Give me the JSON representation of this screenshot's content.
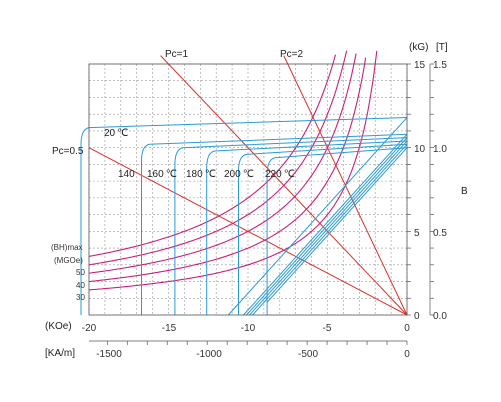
{
  "chart_data": {
    "type": "line",
    "title": "",
    "axes": {
      "h_unit_koe": "(KOe)",
      "h_ticks_koe": [
        "-20",
        "-15",
        "-10",
        "-5",
        "0"
      ],
      "h_unit_kam": "[KA/m]",
      "h_ticks_kam": [
        "-1500",
        "-1000",
        "-500",
        "0"
      ],
      "b_unit_kg": "(kG)",
      "b_unit_t": "[T]",
      "b_ticks_kg": [
        "15",
        "10",
        "5",
        "0"
      ],
      "b_ticks_t": [
        "1.5",
        "1.0",
        "0.5",
        "0.0"
      ],
      "b_label": "B",
      "xlim_koe": [
        -20,
        0
      ],
      "ylim_kg": [
        0,
        15
      ],
      "grid": true
    },
    "bhmax": {
      "header_1": "(BH)max",
      "header_2": "(MGOe)",
      "labels": [
        "50",
        "40",
        "30"
      ],
      "values": [
        50,
        40,
        30
      ],
      "color": "#cc1f7a"
    },
    "permeance": {
      "labels": [
        "Pc=1",
        "Pc=2",
        "Pc=0.5"
      ],
      "values": [
        1,
        2,
        0.5
      ],
      "color": "#d8322b"
    },
    "temperature_curves": {
      "color": "#2a9bd6",
      "series": [
        {
          "label": "20",
          "unit": "℃",
          "br_kg": 11.8,
          "hcj_koe": -20.5
        },
        {
          "label": "140",
          "unit": "",
          "br_kg": 10.8,
          "hcj_koe": -16.7
        },
        {
          "label": "160",
          "unit": "℃",
          "br_kg": 10.6,
          "hcj_koe": -14.6
        },
        {
          "label": "180",
          "unit": "℃",
          "br_kg": 10.4,
          "hcj_koe": -12.6
        },
        {
          "label": "200",
          "unit": "℃",
          "br_kg": 10.2,
          "hcj_koe": -10.6
        },
        {
          "label": "220",
          "unit": "℃",
          "br_kg": 10.0,
          "hcj_koe": -8.8
        }
      ]
    }
  }
}
